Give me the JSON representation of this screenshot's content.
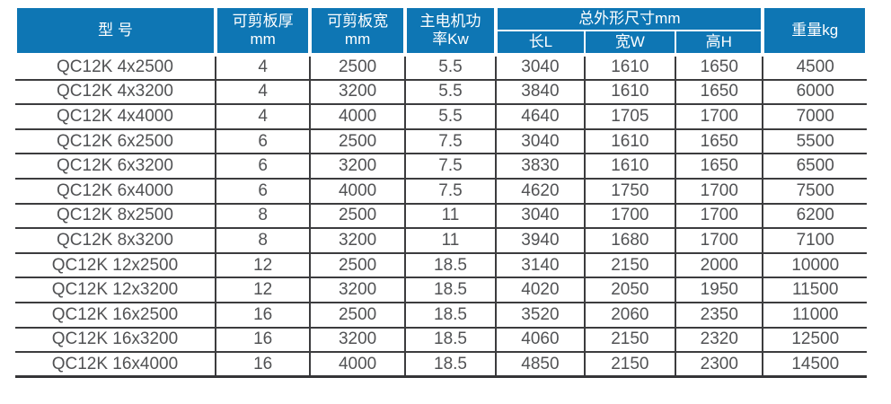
{
  "colors": {
    "header_bg": "#0e76b4",
    "header_text": "#ffffff",
    "body_text": "#515254",
    "grid_line": "#3c3c3e"
  },
  "table": {
    "headers": {
      "model": "型 号",
      "thickness_line1": "可剪板厚",
      "thickness_line2": "mm",
      "plate_width_line1": "可剪板宽",
      "plate_width_line2": "mm",
      "power_line1": "主电机功",
      "power_line2": "率Kw",
      "dimensions_group": "总外形尺寸mm",
      "dim_length": "长L",
      "dim_width": "宽W",
      "dim_height": "高H",
      "weight": "重量kg"
    },
    "column_keys": [
      "model",
      "thickness",
      "plate-width",
      "power",
      "length",
      "overall-width",
      "height",
      "weight"
    ],
    "rows": [
      [
        "QC12K 4x2500",
        "4",
        "2500",
        "5.5",
        "3040",
        "1610",
        "1650",
        "4500"
      ],
      [
        "QC12K 4x3200",
        "4",
        "3200",
        "5.5",
        "3840",
        "1610",
        "1650",
        "6000"
      ],
      [
        "QC12K 4x4000",
        "4",
        "4000",
        "5.5",
        "4640",
        "1705",
        "1700",
        "7000"
      ],
      [
        "QC12K 6x2500",
        "6",
        "2500",
        "7.5",
        "3040",
        "1610",
        "1650",
        "5500"
      ],
      [
        "QC12K 6x3200",
        "6",
        "3200",
        "7.5",
        "3830",
        "1610",
        "1650",
        "6500"
      ],
      [
        "QC12K 6x4000",
        "6",
        "4000",
        "7.5",
        "4620",
        "1750",
        "1700",
        "7500"
      ],
      [
        "QC12K 8x2500",
        "8",
        "2500",
        "11",
        "3040",
        "1700",
        "1700",
        "6200"
      ],
      [
        "QC12K 8x3200",
        "8",
        "3200",
        "11",
        "3940",
        "1680",
        "1700",
        "7100"
      ],
      [
        "QC12K 12x2500",
        "12",
        "2500",
        "18.5",
        "3140",
        "2150",
        "2000",
        "10000"
      ],
      [
        "QC12K 12x3200",
        "12",
        "3200",
        "18.5",
        "4020",
        "2050",
        "1950",
        "11500"
      ],
      [
        "QC12K 16x2500",
        "16",
        "2500",
        "18.5",
        "3520",
        "2060",
        "2350",
        "11000"
      ],
      [
        "QC12K 16x3200",
        "16",
        "3200",
        "18.5",
        "4060",
        "2150",
        "2320",
        "12500"
      ],
      [
        "QC12K 16x4000",
        "16",
        "4000",
        "18.5",
        "4850",
        "2150",
        "2300",
        "14500"
      ]
    ]
  }
}
